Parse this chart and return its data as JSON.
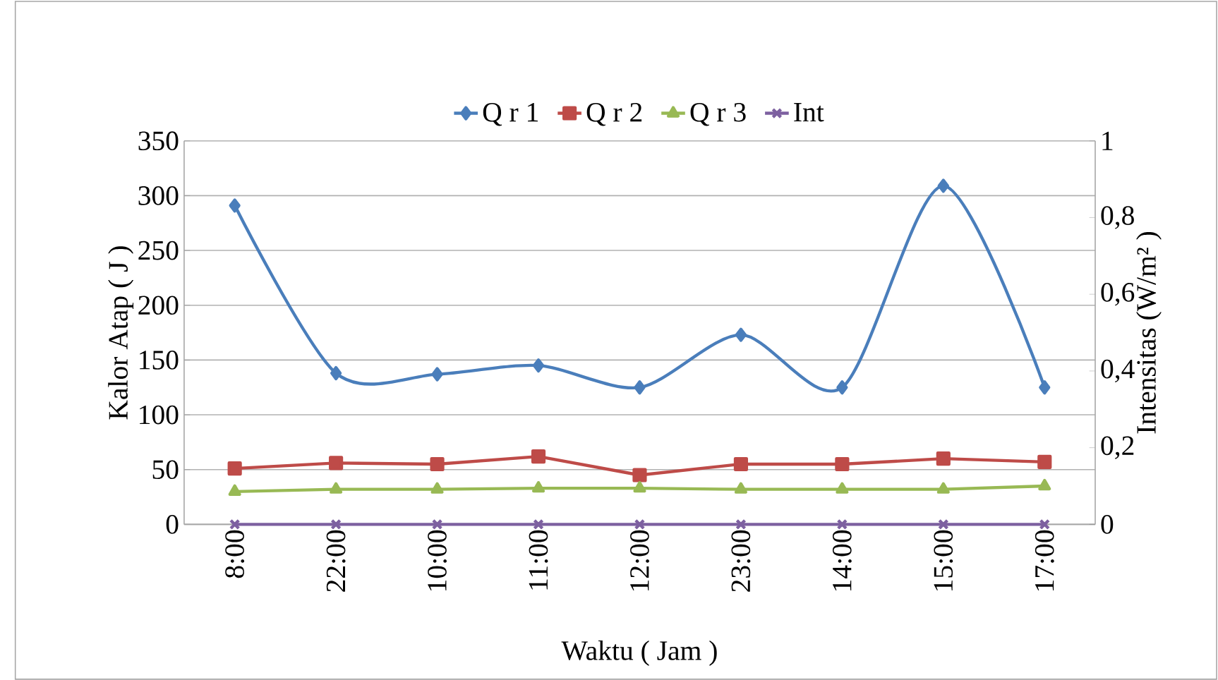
{
  "chart_data": {
    "type": "line",
    "xlabel": "Waktu ( Jam )",
    "ylabel": "Kalor Atap ( J )",
    "y2label": "Intensitas  (W/m² )",
    "categories": [
      "8:00",
      "22:00",
      "10:00",
      "11:00",
      "12:00",
      "23:00",
      "14:00",
      "15:00",
      "17:00"
    ],
    "series": [
      {
        "name": "Q r 1",
        "color": "#4a7ebb",
        "marker": "diamond",
        "values": [
          291,
          138,
          137,
          145,
          125,
          173,
          125,
          309,
          125
        ]
      },
      {
        "name": "Q r 2",
        "color": "#be4b48",
        "marker": "square",
        "values": [
          51,
          56,
          55,
          62,
          45,
          55,
          55,
          60,
          57
        ]
      },
      {
        "name": "Q r 3",
        "color": "#98b954",
        "marker": "triangle",
        "values": [
          30,
          32,
          32,
          33,
          33,
          32,
          32,
          32,
          35
        ]
      },
      {
        "name": "Int",
        "color": "#7d60a0",
        "marker": "cross",
        "axis": "y2",
        "values": [
          0,
          0,
          0,
          0,
          0,
          0,
          0,
          0,
          0
        ]
      }
    ],
    "ylim": [
      0,
      350
    ],
    "yticks": [
      0,
      50,
      100,
      150,
      200,
      250,
      300,
      350
    ],
    "y2lim": [
      0,
      1
    ],
    "y2ticks": [
      0,
      {
        "value": 0.2,
        "label": "0,2"
      },
      {
        "value": 0.4,
        "label": "0,4"
      },
      {
        "value": 0.6,
        "label": "0,6"
      },
      {
        "value": 0.8,
        "label": "0,8"
      },
      1
    ],
    "grid": "y",
    "legend": "top",
    "line_style": "solid"
  }
}
